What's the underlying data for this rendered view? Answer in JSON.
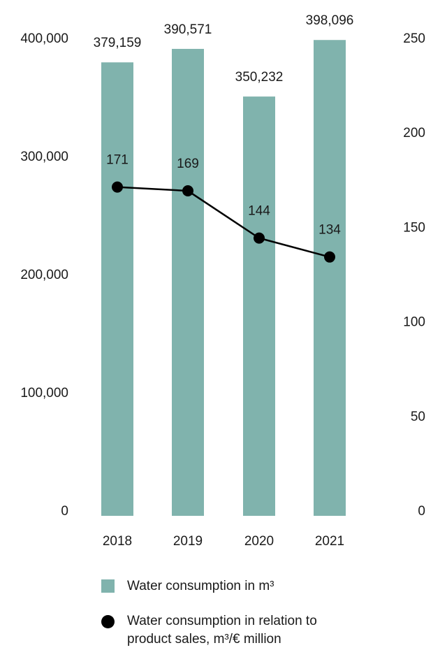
{
  "chart_data": {
    "type": "bar",
    "categories": [
      "2018",
      "2019",
      "2020",
      "2021"
    ],
    "series": [
      {
        "name": "Water consumption in m³",
        "kind": "bar",
        "axis": "left",
        "values": [
          379159,
          390571,
          350232,
          398096
        ],
        "labels": [
          "379,159",
          "390,571",
          "350,232",
          "398,096"
        ],
        "color": "#80b3ad"
      },
      {
        "name": "Water consumption in relation to product sales, m³/€ million",
        "kind": "line",
        "axis": "right",
        "values": [
          171,
          169,
          144,
          134
        ],
        "labels": [
          "171",
          "169",
          "144",
          "134"
        ],
        "color": "#000000"
      }
    ],
    "y_left": {
      "ylim": [
        0,
        400000
      ],
      "ticks": [
        0,
        100000,
        200000,
        300000,
        400000
      ],
      "tick_labels": [
        "0",
        "100,000",
        "200,000",
        "300,000",
        "400,000"
      ]
    },
    "y_right": {
      "ylim": [
        0,
        250
      ],
      "ticks": [
        0,
        50,
        100,
        150,
        200,
        250
      ],
      "tick_labels": [
        "0",
        "50",
        "100",
        "150",
        "200",
        "250"
      ]
    },
    "grid": false,
    "legend_position": "bottom"
  },
  "legend": {
    "bar_label": "Water consumption in m³",
    "line_label_line1": "Water consumption in relation to",
    "line_label_line2": "product sales, m³/€ million"
  }
}
